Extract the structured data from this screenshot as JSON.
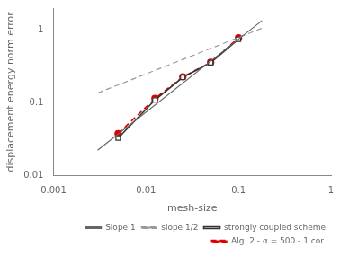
{
  "chart_data": {
    "type": "line",
    "xlabel": "mesh-size",
    "ylabel": "displacement energy norm error",
    "log": true,
    "grid": false,
    "legend": "lower right",
    "xlim": [
      0.001,
      1
    ],
    "xticks": [
      0.001,
      0.01,
      0.1,
      1
    ],
    "ylim": [
      0.01,
      2.0
    ],
    "yticks": [
      0.01,
      0.1,
      1
    ],
    "series": [
      {
        "name": "Slope 1",
        "color": "#666666",
        "marker": "none",
        "line_style": "solid",
        "x": [
          0.003,
          0.18
        ],
        "values": [
          0.0225,
          1.35
        ]
      },
      {
        "name": "slope 1/2",
        "color": "#999999",
        "marker": "none",
        "line_style": "dashed",
        "x": [
          0.003,
          0.18
        ],
        "values": [
          0.1369306394,
          1.0606601718
        ]
      },
      {
        "name": "strongly coupled scheme",
        "color": "#333333",
        "marker": "square",
        "line_style": "solid",
        "x": [
          0.005,
          0.0125,
          0.025,
          0.05,
          0.1
        ],
        "values": [
          0.033,
          0.11,
          0.225,
          0.355,
          0.75
        ]
      },
      {
        "name": "Alg. 2 - α = 500 - 1 cor.",
        "color": "#dd0000",
        "marker": "circle",
        "line_style": "dashed",
        "x": [
          0.005,
          0.0125,
          0.025,
          0.05,
          0.1
        ],
        "values": [
          0.038,
          0.115,
          0.228,
          0.36,
          0.78
        ]
      }
    ]
  }
}
